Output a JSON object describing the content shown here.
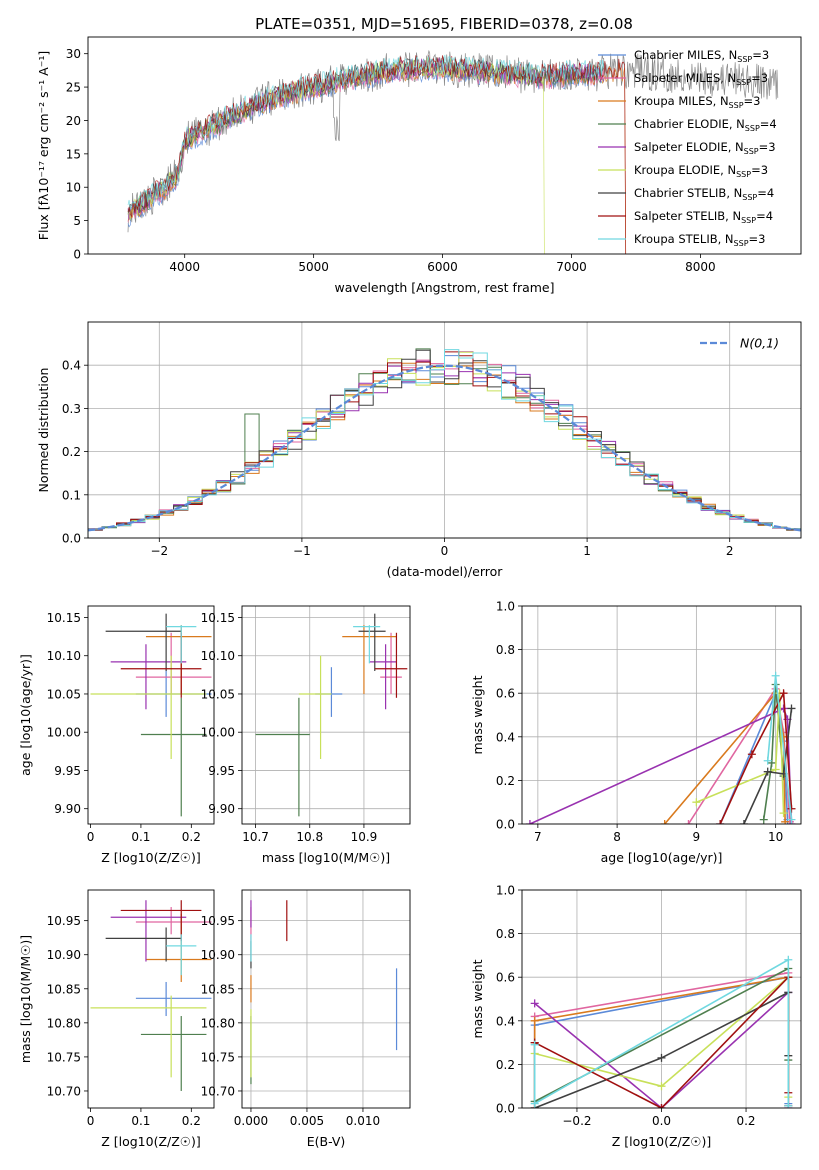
{
  "figure": {
    "title": "PLATE=0351, MJD=51695, FIBERID=0378, z=0.08"
  },
  "colors": {
    "Chabrier MILES": "#5b8ad8",
    "Salpeter MILES": "#e066a0",
    "Kroupa MILES": "#d97a1e",
    "Chabrier ELODIE": "#4f7f4f",
    "Salpeter ELODIE": "#9932b0",
    "Kroupa ELODIE": "#c8e05a",
    "Chabrier STELIB": "#404040",
    "Salpeter STELIB": "#a01010",
    "Kroupa STELIB": "#70d8e0",
    "grid": "#b0b0b0",
    "gaussian": "#5b8ad8"
  },
  "chart_data": [
    {
      "panel": "spectrum",
      "type": "line",
      "xlabel": "wavelength [Angstrom, rest frame]",
      "ylabel": "Flux [fλ10⁻¹⁷ erg cm⁻² s⁻¹ A⁻¹]",
      "xlim": [
        3250,
        8780
      ],
      "ylim": [
        0,
        32.5
      ],
      "xticks": [
        4000,
        5000,
        6000,
        7000,
        8000
      ],
      "yticks": [
        0,
        5,
        10,
        15,
        20,
        25,
        30
      ],
      "grid": false,
      "legend_position": "upper right",
      "continuum": {
        "x": [
          3560,
          3700,
          3850,
          3950,
          4000,
          4100,
          4300,
          4500,
          4700,
          5000,
          5300,
          5600,
          5900,
          6200,
          6500,
          6800,
          7000,
          7200,
          7400,
          7700,
          8000,
          8300,
          8600
        ],
        "y": [
          6,
          8,
          10,
          12,
          17,
          18,
          20,
          22,
          23.5,
          25,
          26.5,
          27.5,
          28,
          27.5,
          27,
          26.5,
          27,
          27,
          27.5,
          27,
          26.5,
          26,
          25.5
        ]
      },
      "legend": [
        {
          "label": "Chabrier MILES, N",
          "sub": "SSP",
          "rest": "=3"
        },
        {
          "label": "Salpeter MILES, N",
          "sub": "SSP",
          "rest": "=3"
        },
        {
          "label": "Kroupa MILES, N",
          "sub": "SSP",
          "rest": "=3"
        },
        {
          "label": "Chabrier ELODIE, N",
          "sub": "SSP",
          "rest": "=4"
        },
        {
          "label": "Salpeter ELODIE, N",
          "sub": "SSP",
          "rest": "=3"
        },
        {
          "label": "Kroupa ELODIE, N",
          "sub": "SSP",
          "rest": "=3"
        },
        {
          "label": "Chabrier STELIB, N",
          "sub": "SSP",
          "rest": "=4"
        },
        {
          "label": "Salpeter STELIB, N",
          "sub": "SSP",
          "rest": "=4"
        },
        {
          "label": "Kroupa STELIB, N",
          "sub": "SSP",
          "rest": "=3"
        }
      ]
    },
    {
      "panel": "residual_histogram",
      "type": "line",
      "xlabel": "(data-model)/error",
      "ylabel": "Normed distribution",
      "xlim": [
        -2.5,
        2.5
      ],
      "ylim": [
        0,
        0.5
      ],
      "xticks": [
        -2,
        -1,
        0,
        1,
        2
      ],
      "yticks": [
        0.0,
        0.1,
        0.2,
        0.3,
        0.4
      ],
      "grid": true,
      "legend_position": "upper right",
      "gaussian_label": "N(0,1)",
      "bin_width": 0.1
    },
    {
      "panel": "age_vs_Z",
      "type": "scatter",
      "xlabel": "Z [log10(Z/Z☉)]",
      "ylabel": "age  [log10(age/yr)]",
      "xlim": [
        -0.005,
        0.245
      ],
      "ylim": [
        9.88,
        10.165
      ],
      "xticks": [
        0.0,
        0.1,
        0.2
      ],
      "yticks": [
        9.9,
        9.95,
        10.0,
        10.05,
        10.1,
        10.15
      ],
      "grid": false,
      "points": [
        {
          "model": "Chabrier MILES",
          "x": 0.15,
          "xerr": [
            0.09,
            0.24
          ],
          "y": 10.05,
          "yerr": [
            10.02,
            10.085
          ]
        },
        {
          "model": "Salpeter MILES",
          "x": 0.16,
          "xerr": [
            0.09,
            0.24
          ],
          "y": 10.072,
          "yerr": [
            10.05,
            10.13
          ]
        },
        {
          "model": "Kroupa MILES",
          "x": 0.18,
          "xerr": [
            0.11,
            0.24
          ],
          "y": 10.125,
          "yerr": [
            10.05,
            10.14
          ]
        },
        {
          "model": "Chabrier ELODIE",
          "x": 0.18,
          "xerr": [
            0.1,
            0.23
          ],
          "y": 9.997,
          "yerr": [
            9.89,
            10.045
          ]
        },
        {
          "model": "Salpeter ELODIE",
          "x": 0.11,
          "xerr": [
            0.04,
            0.19
          ],
          "y": 10.092,
          "yerr": [
            10.03,
            10.115
          ]
        },
        {
          "model": "Kroupa ELODIE",
          "x": 0.16,
          "xerr": [
            0.0,
            0.23
          ],
          "y": 10.05,
          "yerr": [
            9.965,
            10.1
          ]
        },
        {
          "model": "Chabrier STELIB",
          "x": 0.15,
          "xerr": [
            0.03,
            0.18
          ],
          "y": 10.132,
          "yerr": [
            10.08,
            10.155
          ]
        },
        {
          "model": "Salpeter STELIB",
          "x": 0.18,
          "xerr": [
            0.06,
            0.22
          ],
          "y": 10.083,
          "yerr": [
            10.045,
            10.13
          ]
        },
        {
          "model": "Kroupa STELIB",
          "x": 0.18,
          "xerr": [
            0.15,
            0.21
          ],
          "y": 10.138,
          "yerr": [
            10.09,
            10.14
          ]
        }
      ]
    },
    {
      "panel": "age_vs_mass",
      "type": "scatter",
      "xlabel": "mass [log10(M/M☉)]",
      "ylabel": "",
      "xlim": [
        10.675,
        10.985
      ],
      "ylim": [
        9.88,
        10.165
      ],
      "xticks": [
        10.7,
        10.8,
        10.9
      ],
      "yticks": [
        9.9,
        9.95,
        10.0,
        10.05,
        10.1,
        10.15
      ],
      "grid": true,
      "points": [
        {
          "model": "Chabrier MILES",
          "x": 10.84,
          "xerr": [
            10.81,
            10.86
          ],
          "y": 10.05,
          "yerr": [
            10.02,
            10.085
          ]
        },
        {
          "model": "Salpeter MILES",
          "x": 10.95,
          "xerr": [
            10.93,
            10.97
          ],
          "y": 10.072,
          "yerr": [
            10.05,
            10.13
          ]
        },
        {
          "model": "Kroupa MILES",
          "x": 10.9,
          "xerr": [
            10.86,
            10.96
          ],
          "y": 10.125,
          "yerr": [
            10.05,
            10.14
          ]
        },
        {
          "model": "Chabrier ELODIE",
          "x": 10.78,
          "xerr": [
            10.7,
            10.8
          ],
          "y": 9.997,
          "yerr": [
            9.89,
            10.045
          ]
        },
        {
          "model": "Salpeter ELODIE",
          "x": 10.94,
          "xerr": [
            10.91,
            10.96
          ],
          "y": 10.092,
          "yerr": [
            10.03,
            10.115
          ]
        },
        {
          "model": "Kroupa ELODIE",
          "x": 10.82,
          "xerr": [
            10.78,
            10.84
          ],
          "y": 10.05,
          "yerr": [
            9.965,
            10.1
          ]
        },
        {
          "model": "Chabrier STELIB",
          "x": 10.92,
          "xerr": [
            10.89,
            10.94
          ],
          "y": 10.132,
          "yerr": [
            10.08,
            10.155
          ]
        },
        {
          "model": "Salpeter STELIB",
          "x": 10.96,
          "xerr": [
            10.92,
            10.98
          ],
          "y": 10.083,
          "yerr": [
            10.045,
            10.13
          ]
        },
        {
          "model": "Kroupa STELIB",
          "x": 10.91,
          "xerr": [
            10.88,
            10.93
          ],
          "y": 10.138,
          "yerr": [
            10.09,
            10.14
          ]
        }
      ]
    },
    {
      "panel": "mass_weight_vs_age",
      "type": "line",
      "xlabel": "age  [log10(age/yr)]",
      "ylabel": "mass weight",
      "xlim": [
        6.8,
        10.32
      ],
      "ylim": [
        0.0,
        1.0
      ],
      "xticks": [
        7,
        8,
        9,
        10
      ],
      "yticks": [
        0.0,
        0.2,
        0.4,
        0.6,
        0.8,
        1.0
      ],
      "grid": true,
      "series": [
        {
          "model": "Chabrier MILES",
          "x": [
            9.3,
            10.0,
            10.1,
            10.15
          ],
          "y": [
            0.0,
            0.6,
            0.38,
            0.02
          ]
        },
        {
          "model": "Salpeter MILES",
          "x": [
            8.9,
            10.0,
            10.1,
            10.18
          ],
          "y": [
            0.0,
            0.62,
            0.42,
            0.01
          ]
        },
        {
          "model": "Kroupa MILES",
          "x": [
            8.6,
            10.0,
            10.1,
            10.12
          ],
          "y": [
            0.0,
            0.6,
            0.4,
            0.01
          ]
        },
        {
          "model": "Chabrier ELODIE",
          "x": [
            9.85,
            9.95,
            10.0,
            10.1
          ],
          "y": [
            0.02,
            0.28,
            0.64,
            0.22
          ]
        },
        {
          "model": "Salpeter ELODIE",
          "x": [
            6.9,
            10.1,
            10.15,
            10.2
          ],
          "y": [
            0.0,
            0.53,
            0.48,
            0.0
          ]
        },
        {
          "model": "Kroupa ELODIE",
          "x": [
            9.0,
            10.0,
            10.05,
            10.1
          ],
          "y": [
            0.1,
            0.25,
            0.6,
            0.05
          ]
        },
        {
          "model": "Chabrier STELIB",
          "x": [
            9.6,
            9.9,
            10.1,
            10.2
          ],
          "y": [
            0.0,
            0.24,
            0.23,
            0.53
          ]
        },
        {
          "model": "Salpeter STELIB",
          "x": [
            9.3,
            9.7,
            10.1,
            10.2
          ],
          "y": [
            0.0,
            0.32,
            0.6,
            0.07
          ]
        },
        {
          "model": "Kroupa STELIB",
          "x": [
            9.9,
            10.0,
            10.2
          ],
          "y": [
            0.29,
            0.68,
            0.02
          ]
        }
      ]
    },
    {
      "panel": "mass_vs_Z",
      "type": "scatter",
      "xlabel": "Z [log10(Z/Z☉)]",
      "ylabel": "mass [log10(M/M☉)]",
      "xlim": [
        -0.005,
        0.245
      ],
      "ylim": [
        10.675,
        10.995
      ],
      "xticks": [
        0.0,
        0.1,
        0.2
      ],
      "yticks": [
        10.7,
        10.75,
        10.8,
        10.85,
        10.9,
        10.95
      ],
      "grid": false,
      "points": [
        {
          "model": "Chabrier MILES",
          "x": 0.15,
          "xerr": [
            0.09,
            0.24
          ],
          "y": 10.836,
          "yerr": [
            10.81,
            10.86
          ]
        },
        {
          "model": "Salpeter MILES",
          "x": 0.16,
          "xerr": [
            0.09,
            0.24
          ],
          "y": 10.948,
          "yerr": [
            10.93,
            10.97
          ]
        },
        {
          "model": "Kroupa MILES",
          "x": 0.18,
          "xerr": [
            0.11,
            0.24
          ],
          "y": 10.893,
          "yerr": [
            10.86,
            10.96
          ]
        },
        {
          "model": "Chabrier ELODIE",
          "x": 0.18,
          "xerr": [
            0.1,
            0.23
          ],
          "y": 10.783,
          "yerr": [
            10.7,
            10.81
          ]
        },
        {
          "model": "Salpeter ELODIE",
          "x": 0.11,
          "xerr": [
            0.04,
            0.19
          ],
          "y": 10.955,
          "yerr": [
            10.89,
            10.98
          ]
        },
        {
          "model": "Kroupa ELODIE",
          "x": 0.16,
          "xerr": [
            0.0,
            0.23
          ],
          "y": 10.822,
          "yerr": [
            10.72,
            10.84
          ]
        },
        {
          "model": "Chabrier STELIB",
          "x": 0.15,
          "xerr": [
            0.03,
            0.18
          ],
          "y": 10.924,
          "yerr": [
            10.89,
            10.94
          ]
        },
        {
          "model": "Salpeter STELIB",
          "x": 0.18,
          "xerr": [
            0.06,
            0.22
          ],
          "y": 10.965,
          "yerr": [
            10.92,
            10.98
          ]
        },
        {
          "model": "Kroupa STELIB",
          "x": 0.18,
          "xerr": [
            0.15,
            0.21
          ],
          "y": 10.913,
          "yerr": [
            10.87,
            10.93
          ]
        }
      ]
    },
    {
      "panel": "mass_vs_ebv",
      "type": "scatter",
      "xlabel": "E(B-V)",
      "ylabel": "",
      "xlim": [
        -0.0008,
        0.0142
      ],
      "ylim": [
        10.675,
        10.995
      ],
      "xticks": [
        0.0,
        0.005,
        0.01
      ],
      "xticklabels": [
        "0.000",
        "0.005",
        "0.010"
      ],
      "yticks": [
        10.7,
        10.75,
        10.8,
        10.85,
        10.9,
        10.95
      ],
      "grid": true,
      "points": [
        {
          "model": "Chabrier MILES",
          "x": 0.013,
          "y": 10.82,
          "yerr": [
            10.76,
            10.88
          ]
        },
        {
          "model": "Salpeter MILES",
          "x": 0.0,
          "y": 10.95,
          "yerr": [
            10.92,
            10.97
          ]
        },
        {
          "model": "Kroupa MILES",
          "x": 0.0,
          "y": 10.85,
          "yerr": [
            10.83,
            10.87
          ]
        },
        {
          "model": "Chabrier ELODIE",
          "x": 0.0,
          "y": 10.78,
          "yerr": [
            10.71,
            10.81
          ]
        },
        {
          "model": "Salpeter ELODIE",
          "x": 0.0,
          "y": 10.96,
          "yerr": [
            10.94,
            10.98
          ]
        },
        {
          "model": "Kroupa ELODIE",
          "x": 0.0,
          "y": 10.79,
          "yerr": [
            10.72,
            10.82
          ]
        },
        {
          "model": "Chabrier STELIB",
          "x": 0.0,
          "y": 10.9,
          "yerr": [
            10.88,
            10.92
          ]
        },
        {
          "model": "Salpeter STELIB",
          "x": 0.0032,
          "y": 10.95,
          "yerr": [
            10.92,
            10.98
          ]
        },
        {
          "model": "Kroupa STELIB",
          "x": 0.0,
          "y": 10.91,
          "yerr": [
            10.89,
            10.93
          ]
        }
      ]
    },
    {
      "panel": "mass_weight_vs_Z",
      "type": "line",
      "xlabel": "Z [log10(Z/Z☉)]",
      "ylabel": "mass weight",
      "xlim": [
        -0.33,
        0.33
      ],
      "ylim": [
        0.0,
        1.0
      ],
      "xticks": [
        -0.2,
        0.0,
        0.2
      ],
      "xticklabels": [
        "−0.2",
        "0.0",
        "0.2"
      ],
      "yticks": [
        0.0,
        0.2,
        0.4,
        0.6,
        0.8,
        1.0
      ],
      "grid": true,
      "series": [
        {
          "model": "Chabrier MILES",
          "x": [
            -0.3,
            -0.3,
            0.3,
            0.3
          ],
          "y": [
            0.0,
            0.38,
            0.6,
            0.02
          ]
        },
        {
          "model": "Salpeter MILES",
          "x": [
            -0.3,
            -0.3,
            0.3,
            0.3
          ],
          "y": [
            0.0,
            0.42,
            0.62,
            0.01
          ]
        },
        {
          "model": "Kroupa MILES",
          "x": [
            -0.3,
            -0.3,
            0.3,
            0.3
          ],
          "y": [
            0.0,
            0.4,
            0.6,
            0.01
          ]
        },
        {
          "model": "Chabrier ELODIE",
          "x": [
            -0.3,
            -0.3,
            0.3,
            0.3
          ],
          "y": [
            0.3,
            0.03,
            0.64,
            0.22
          ]
        },
        {
          "model": "Salpeter ELODIE",
          "x": [
            -0.3,
            0.0,
            0.3,
            0.3
          ],
          "y": [
            0.48,
            0.0,
            0.53,
            0.0
          ]
        },
        {
          "model": "Kroupa ELODIE",
          "x": [
            -0.3,
            0.0,
            0.3,
            0.3
          ],
          "y": [
            0.25,
            0.1,
            0.6,
            0.05
          ]
        },
        {
          "model": "Chabrier STELIB",
          "x": [
            -0.3,
            0.0,
            0.3,
            0.3
          ],
          "y": [
            0.0,
            0.23,
            0.53,
            0.24
          ]
        },
        {
          "model": "Salpeter STELIB",
          "x": [
            -0.3,
            0.0,
            0.3,
            0.3
          ],
          "y": [
            0.3,
            0.0,
            0.6,
            0.07
          ]
        },
        {
          "model": "Kroupa STELIB",
          "x": [
            -0.3,
            -0.3,
            0.3,
            0.3
          ],
          "y": [
            0.29,
            0.02,
            0.68,
            0.01
          ]
        }
      ]
    }
  ]
}
